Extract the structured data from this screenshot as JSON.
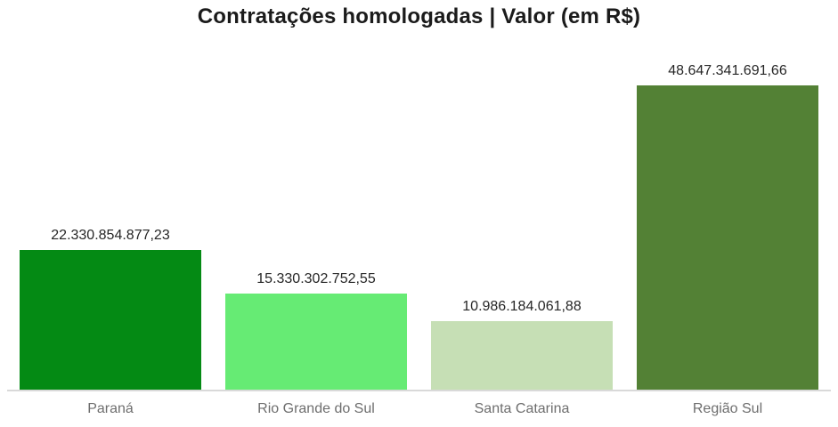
{
  "chart_data": {
    "type": "bar",
    "title": "Contratações homologadas | Valor (em R$)",
    "categories": [
      "Paraná",
      "Rio Grande do Sul",
      "Santa Catarina",
      "Região Sul"
    ],
    "values": [
      22330854877.23,
      15330302752.55,
      10986184061.88,
      48647341691.66
    ],
    "value_labels": [
      "22.330.854.877,23",
      "15.330.302.752,55",
      "10.986.184.061,88",
      "48.647.341.691,66"
    ],
    "bar_colors": [
      "#048A14",
      "#66EB74",
      "#C6DFB5",
      "#538135"
    ],
    "xlabel": "",
    "ylabel": "",
    "ylim": [
      0,
      48647341691.66
    ],
    "grid": false,
    "legend": false,
    "axis_line_color": "#D9D9D9",
    "title_color": "#1B1B1B",
    "value_label_color": "#262626",
    "category_label_color": "#6E6E6E",
    "background_color": "#FFFFFF"
  }
}
